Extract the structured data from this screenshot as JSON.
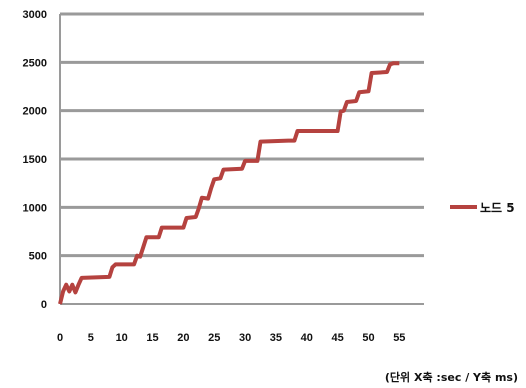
{
  "chart_data": {
    "type": "line",
    "title": "",
    "xlabel": "",
    "ylabel": "",
    "xlim": [
      0,
      59
    ],
    "ylim": [
      0,
      3000
    ],
    "x_ticks": [
      0,
      5,
      10,
      15,
      20,
      25,
      30,
      35,
      40,
      45,
      50,
      55
    ],
    "y_ticks": [
      0,
      500,
      1000,
      1500,
      2000,
      2500,
      3000
    ],
    "grid": "horizontal",
    "legend_position": "right",
    "line_color": "#b5423f",
    "grid_color": "#9a9a9a",
    "series": [
      {
        "name": "노드 5",
        "points": [
          [
            0,
            0
          ],
          [
            0.5,
            130
          ],
          [
            1,
            200
          ],
          [
            1.5,
            130
          ],
          [
            2,
            200
          ],
          [
            2.5,
            120
          ],
          [
            3,
            200
          ],
          [
            3.5,
            270
          ],
          [
            8,
            280
          ],
          [
            8.5,
            380
          ],
          [
            9,
            410
          ],
          [
            12,
            410
          ],
          [
            12.5,
            500
          ],
          [
            13,
            490
          ],
          [
            13.5,
            590
          ],
          [
            14,
            690
          ],
          [
            16,
            690
          ],
          [
            16.5,
            790
          ],
          [
            20,
            790
          ],
          [
            20.5,
            890
          ],
          [
            22,
            900
          ],
          [
            22.5,
            990
          ],
          [
            23,
            1100
          ],
          [
            24,
            1090
          ],
          [
            24.5,
            1200
          ],
          [
            25,
            1290
          ],
          [
            26,
            1300
          ],
          [
            26.5,
            1390
          ],
          [
            29.5,
            1400
          ],
          [
            30,
            1480
          ],
          [
            32,
            1480
          ],
          [
            32.5,
            1680
          ],
          [
            37,
            1690
          ],
          [
            38,
            1690
          ],
          [
            38.5,
            1790
          ],
          [
            44,
            1790
          ],
          [
            45,
            1790
          ],
          [
            45.5,
            1990
          ],
          [
            46,
            2000
          ],
          [
            46.5,
            2090
          ],
          [
            48,
            2100
          ],
          [
            48.5,
            2190
          ],
          [
            50,
            2200
          ],
          [
            50.5,
            2390
          ],
          [
            53,
            2400
          ],
          [
            53.5,
            2480
          ],
          [
            54,
            2490
          ],
          [
            55,
            2490
          ]
        ]
      }
    ],
    "note": "(단위 X축 :sec / Y축 ms)"
  }
}
